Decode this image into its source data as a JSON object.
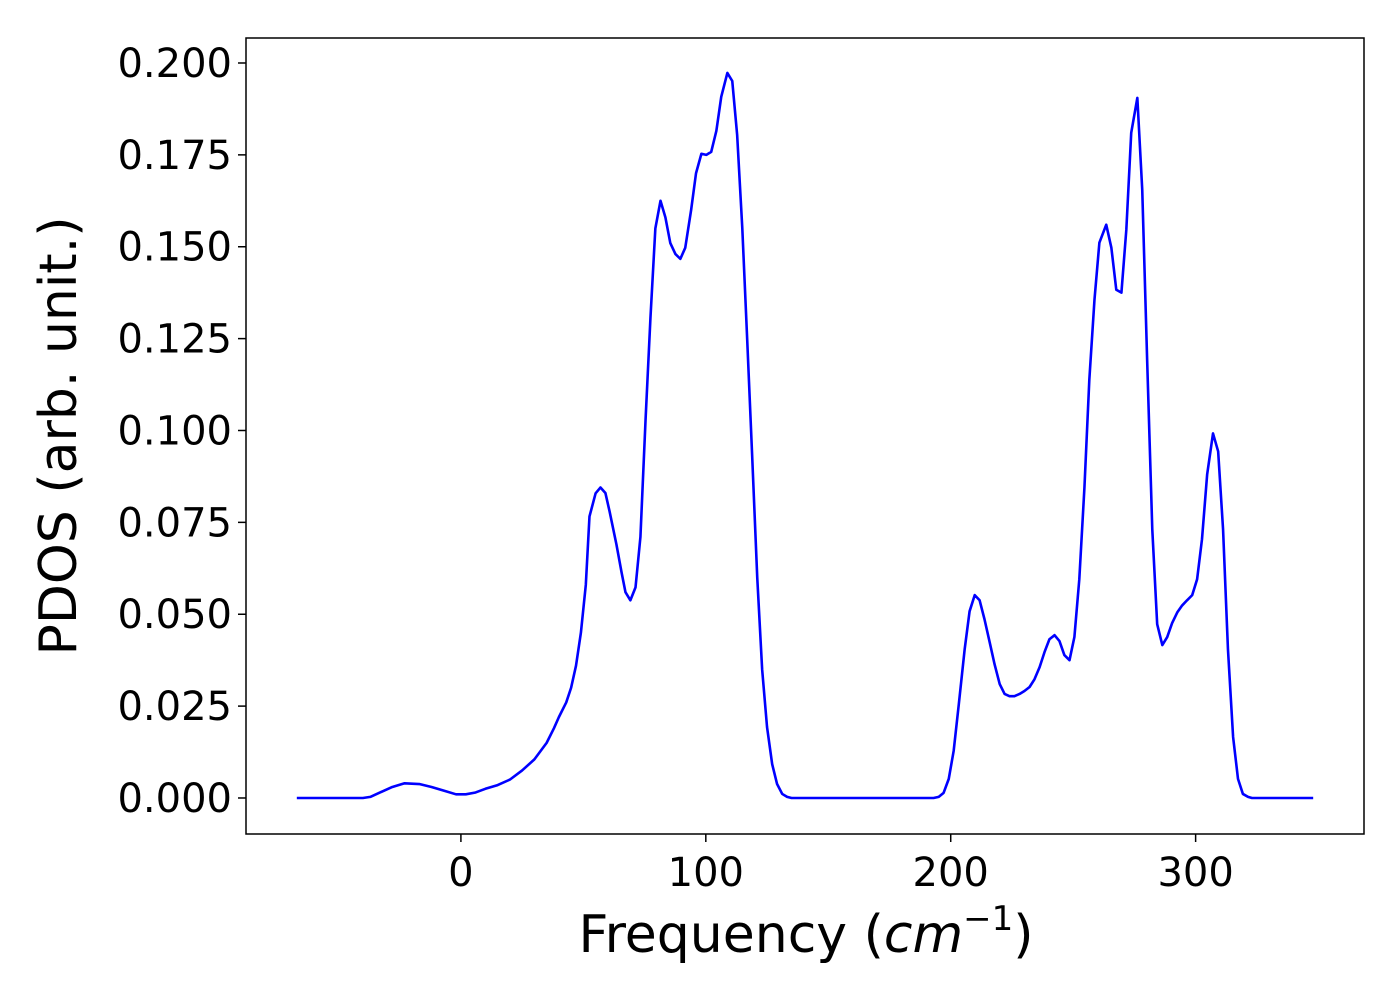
{
  "chart_data": {
    "type": "line",
    "xlabel": [
      "Frequency (",
      "cm",
      "−1",
      ")"
    ],
    "ylabel": "PDOS (arb. unit.)",
    "x": [
      -67,
      -40,
      -37,
      -33,
      -28,
      -23,
      -17,
      -12,
      -7,
      -2,
      2,
      6,
      10,
      15,
      20,
      25,
      30,
      35,
      38,
      40,
      43,
      45,
      47,
      49,
      51,
      52.5,
      55,
      57,
      59,
      60.7,
      63.5,
      65.6,
      67.2,
      69.2,
      71.3,
      73.3,
      75.4,
      77.4,
      79.4,
      81.5,
      83.5,
      85.5,
      87.6,
      89.6,
      91.6,
      94,
      96,
      98.2,
      100.2,
      102.2,
      104.3,
      106.3,
      108.8,
      110.8,
      112.8,
      114.9,
      116.9,
      118.9,
      121,
      123,
      125,
      127.1,
      129.1,
      131.2,
      133.2,
      135,
      193,
      195.1,
      197.1,
      199.2,
      201.2,
      203.3,
      205.7,
      207.7,
      209.8,
      211.8,
      213.8,
      215.9,
      217.9,
      220,
      222,
      224,
      226,
      228.1,
      230.1,
      232.2,
      234.2,
      236.3,
      238.3,
      240.3,
      242.4,
      244.4,
      246.4,
      248.5,
      250.5,
      252.5,
      254.6,
      256.6,
      258.7,
      260.7,
      263.5,
      265.6,
      267.6,
      269.7,
      271.7,
      273.7,
      276.2,
      278.2,
      280.2,
      282.3,
      284.3,
      286.4,
      288.4,
      290.4,
      292.5,
      294.5,
      296.5,
      298.6,
      300.6,
      302.6,
      304.7,
      307.1,
      309.2,
      311.2,
      313.2,
      315.3,
      317.3,
      319.3,
      321.4,
      323,
      348
    ],
    "series": [
      {
        "color": "#0000ff",
        "values": [
          0,
          0,
          0.0003,
          0.0015,
          0.003,
          0.004,
          0.0038,
          0.003,
          0.002,
          0.001,
          0.001,
          0.0015,
          0.0025,
          0.0035,
          0.005,
          0.0075,
          0.0105,
          0.015,
          0.019,
          0.022,
          0.026,
          0.03,
          0.036,
          0.045,
          0.058,
          0.0766,
          0.0829,
          0.0845,
          0.083,
          0.078,
          0.069,
          0.0614,
          0.056,
          0.0538,
          0.0573,
          0.071,
          0.103,
          0.1307,
          0.155,
          0.1625,
          0.158,
          0.151,
          0.148,
          0.1467,
          0.1497,
          0.16,
          0.17,
          0.1753,
          0.175,
          0.1758,
          0.1815,
          0.1908,
          0.1973,
          0.1951,
          0.1804,
          0.155,
          0.1247,
          0.0935,
          0.06,
          0.035,
          0.0193,
          0.0092,
          0.0038,
          0.0011,
          0.0003,
          0,
          0,
          0.0003,
          0.0014,
          0.0052,
          0.0128,
          0.0255,
          0.0405,
          0.0508,
          0.0552,
          0.0538,
          0.0486,
          0.0424,
          0.0364,
          0.031,
          0.0283,
          0.0277,
          0.0277,
          0.0283,
          0.0291,
          0.0302,
          0.0323,
          0.0356,
          0.0397,
          0.0432,
          0.0443,
          0.0427,
          0.0389,
          0.0375,
          0.0438,
          0.0595,
          0.0845,
          0.1139,
          0.1356,
          0.1511,
          0.156,
          0.1497,
          0.1383,
          0.1375,
          0.1546,
          0.181,
          0.1905,
          0.1655,
          0.1193,
          0.0731,
          0.0473,
          0.0416,
          0.0438,
          0.0476,
          0.0505,
          0.0524,
          0.0538,
          0.0552,
          0.0595,
          0.0704,
          0.088,
          0.0992,
          0.0943,
          0.0731,
          0.0405,
          0.0166,
          0.0052,
          0.0011,
          0.0003,
          0,
          0
        ]
      }
    ],
    "xlim": [
      -87.75,
      368.75
    ],
    "xticks": [
      0,
      100,
      200,
      300
    ],
    "ylim": [
      -0.0098,
      0.2068
    ],
    "yticks": [
      {
        "value": 0,
        "label": "0.000"
      },
      {
        "value": 0.025,
        "label": "0.025"
      },
      {
        "value": 0.05,
        "label": "0.050"
      },
      {
        "value": 0.075,
        "label": "0.075"
      },
      {
        "value": 0.1,
        "label": "0.100"
      },
      {
        "value": 0.125,
        "label": "0.125"
      },
      {
        "value": 0.15,
        "label": "0.150"
      },
      {
        "value": 0.175,
        "label": "0.175"
      },
      {
        "value": 0.2,
        "label": "0.200"
      }
    ],
    "grid": false
  }
}
